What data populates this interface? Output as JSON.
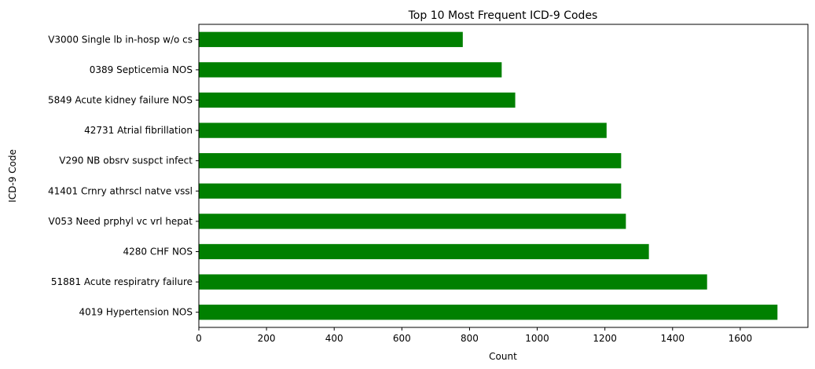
{
  "chart_data": {
    "type": "bar",
    "orientation": "horizontal",
    "title": "Top 10 Most Frequent ICD-9 Codes",
    "xlabel": "Count",
    "ylabel": "ICD-9 Code",
    "xlim": [
      0,
      1800
    ],
    "xticks": [
      0,
      200,
      400,
      600,
      800,
      1000,
      1200,
      1400,
      1600
    ],
    "xtick_labels": [
      "0",
      "200",
      "400",
      "600",
      "800",
      "1000",
      "1200",
      "1400",
      "1600"
    ],
    "categories": [
      "V3000 Single lb in-hosp w/o cs",
      "0389 Septicemia NOS",
      "5849 Acute kidney failure NOS",
      "42731 Atrial fibrillation",
      "V290 NB obsrv suspct infect",
      "41401 Crnry athrscl natve vssl",
      "V053 Need prphyl vc vrl hepat",
      "4280 CHF NOS",
      "51881 Acute respiratry failure",
      "4019 Hypertension NOS"
    ],
    "values": [
      780,
      895,
      935,
      1205,
      1248,
      1248,
      1262,
      1330,
      1502,
      1710
    ],
    "bar_color": "#008000",
    "grid": false,
    "legend": "none"
  }
}
